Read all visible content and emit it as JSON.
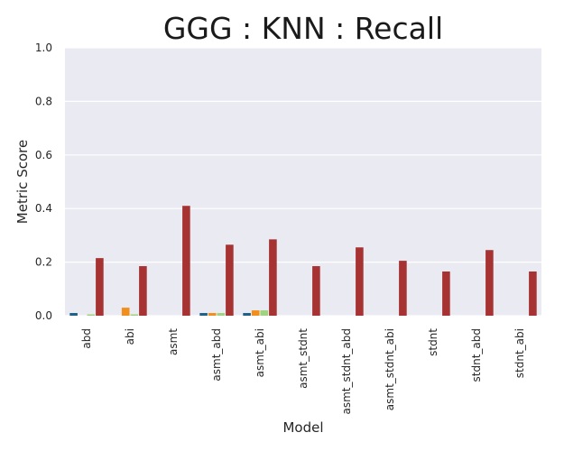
{
  "chart_data": {
    "type": "bar",
    "title": "GGG : KNN : Recall",
    "xlabel": "Model",
    "ylabel": "Metric Score",
    "ylim": [
      0,
      1.0
    ],
    "yticks": [
      "0.0",
      "0.2",
      "0.4",
      "0.6",
      "0.8",
      "1.0"
    ],
    "grid": true,
    "legend": "none",
    "categories": [
      "abd",
      "abi",
      "asmt",
      "asmt_abd",
      "asmt_abi",
      "asmt_stdnt",
      "asmt_stdnt_abd",
      "asmt_stdnt_abi",
      "stdnt",
      "stdnt_abd",
      "stdnt_abi"
    ],
    "series": [
      {
        "color": "#1f5f8b",
        "values": [
          0.01,
          0.0,
          0.0,
          0.01,
          0.01,
          0.0,
          0.0,
          0.0,
          0.0,
          0.0,
          0.0
        ]
      },
      {
        "color": "#f28e1c",
        "values": [
          0.0,
          0.03,
          0.0,
          0.01,
          0.02,
          0.0,
          0.0,
          0.0,
          0.0,
          0.0,
          0.0
        ]
      },
      {
        "color": "#9fd37d",
        "values": [
          0.005,
          0.005,
          0.0,
          0.01,
          0.02,
          0.0,
          0.0,
          0.0,
          0.0,
          0.0,
          0.0
        ]
      },
      {
        "color": "#a63232",
        "values": [
          0.215,
          0.185,
          0.41,
          0.265,
          0.285,
          0.185,
          0.255,
          0.205,
          0.165,
          0.245,
          0.165
        ]
      }
    ],
    "plot_background": "#eaeaf2",
    "gridline_color": "#ffffff"
  }
}
